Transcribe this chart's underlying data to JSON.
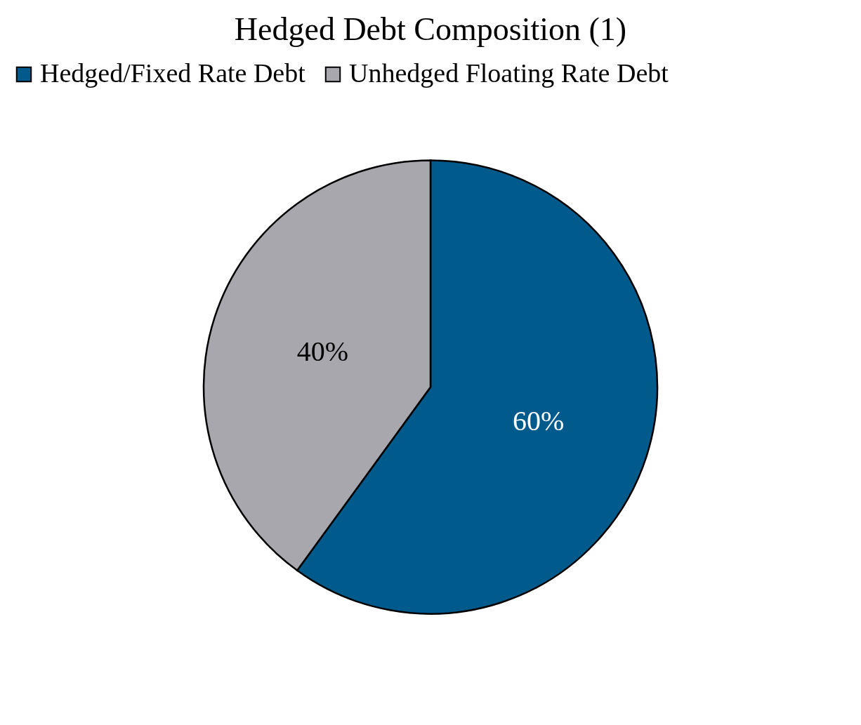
{
  "chart_data": {
    "type": "pie",
    "title": "Hedged Debt Composition (1)",
    "categories": [
      "Hedged/Fixed Rate Debt",
      "Unhedged Floating Rate Debt"
    ],
    "values": [
      60,
      40
    ],
    "colors": [
      "#005a8c",
      "#a7a7ad"
    ],
    "value_labels": [
      "60%",
      "40%"
    ],
    "legend": "top"
  }
}
